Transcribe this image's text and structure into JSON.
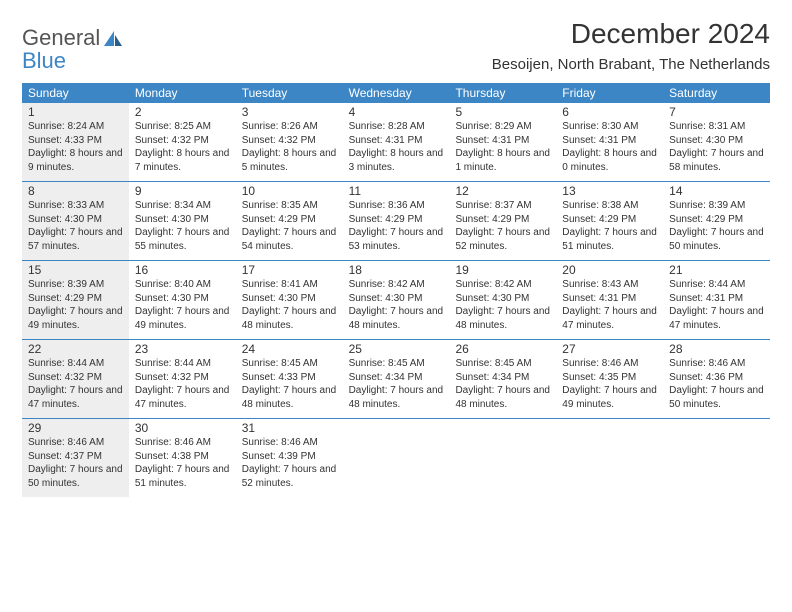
{
  "brand": {
    "line1": "General",
    "line2": "Blue"
  },
  "title": "December 2024",
  "location": "Besoijen, North Brabant, The Netherlands",
  "colors": {
    "header_bg": "#3d86c6",
    "header_text": "#ffffff",
    "text": "#333333",
    "shaded_bg": "#eeeeee",
    "rule": "#3d86c6",
    "page_bg": "#ffffff",
    "logo_general": "#555555",
    "logo_blue": "#3d86c6"
  },
  "fonts": {
    "title_size": 28,
    "location_size": 15,
    "dayheader_size": 12,
    "daynum_size": 12,
    "daytext_size": 10
  },
  "day_names": [
    "Sunday",
    "Monday",
    "Tuesday",
    "Wednesday",
    "Thursday",
    "Friday",
    "Saturday"
  ],
  "weeks": [
    [
      {
        "n": "1",
        "shaded": true,
        "sunrise": "8:24 AM",
        "sunset": "4:33 PM",
        "daylight": "8 hours and 9 minutes."
      },
      {
        "n": "2",
        "sunrise": "8:25 AM",
        "sunset": "4:32 PM",
        "daylight": "8 hours and 7 minutes."
      },
      {
        "n": "3",
        "sunrise": "8:26 AM",
        "sunset": "4:32 PM",
        "daylight": "8 hours and 5 minutes."
      },
      {
        "n": "4",
        "sunrise": "8:28 AM",
        "sunset": "4:31 PM",
        "daylight": "8 hours and 3 minutes."
      },
      {
        "n": "5",
        "sunrise": "8:29 AM",
        "sunset": "4:31 PM",
        "daylight": "8 hours and 1 minute."
      },
      {
        "n": "6",
        "sunrise": "8:30 AM",
        "sunset": "4:31 PM",
        "daylight": "8 hours and 0 minutes."
      },
      {
        "n": "7",
        "sunrise": "8:31 AM",
        "sunset": "4:30 PM",
        "daylight": "7 hours and 58 minutes."
      }
    ],
    [
      {
        "n": "8",
        "shaded": true,
        "sunrise": "8:33 AM",
        "sunset": "4:30 PM",
        "daylight": "7 hours and 57 minutes."
      },
      {
        "n": "9",
        "sunrise": "8:34 AM",
        "sunset": "4:30 PM",
        "daylight": "7 hours and 55 minutes."
      },
      {
        "n": "10",
        "sunrise": "8:35 AM",
        "sunset": "4:29 PM",
        "daylight": "7 hours and 54 minutes."
      },
      {
        "n": "11",
        "sunrise": "8:36 AM",
        "sunset": "4:29 PM",
        "daylight": "7 hours and 53 minutes."
      },
      {
        "n": "12",
        "sunrise": "8:37 AM",
        "sunset": "4:29 PM",
        "daylight": "7 hours and 52 minutes."
      },
      {
        "n": "13",
        "sunrise": "8:38 AM",
        "sunset": "4:29 PM",
        "daylight": "7 hours and 51 minutes."
      },
      {
        "n": "14",
        "sunrise": "8:39 AM",
        "sunset": "4:29 PM",
        "daylight": "7 hours and 50 minutes."
      }
    ],
    [
      {
        "n": "15",
        "shaded": true,
        "sunrise": "8:39 AM",
        "sunset": "4:29 PM",
        "daylight": "7 hours and 49 minutes."
      },
      {
        "n": "16",
        "sunrise": "8:40 AM",
        "sunset": "4:30 PM",
        "daylight": "7 hours and 49 minutes."
      },
      {
        "n": "17",
        "sunrise": "8:41 AM",
        "sunset": "4:30 PM",
        "daylight": "7 hours and 48 minutes."
      },
      {
        "n": "18",
        "sunrise": "8:42 AM",
        "sunset": "4:30 PM",
        "daylight": "7 hours and 48 minutes."
      },
      {
        "n": "19",
        "sunrise": "8:42 AM",
        "sunset": "4:30 PM",
        "daylight": "7 hours and 48 minutes."
      },
      {
        "n": "20",
        "sunrise": "8:43 AM",
        "sunset": "4:31 PM",
        "daylight": "7 hours and 47 minutes."
      },
      {
        "n": "21",
        "sunrise": "8:44 AM",
        "sunset": "4:31 PM",
        "daylight": "7 hours and 47 minutes."
      }
    ],
    [
      {
        "n": "22",
        "shaded": true,
        "sunrise": "8:44 AM",
        "sunset": "4:32 PM",
        "daylight": "7 hours and 47 minutes."
      },
      {
        "n": "23",
        "sunrise": "8:44 AM",
        "sunset": "4:32 PM",
        "daylight": "7 hours and 47 minutes."
      },
      {
        "n": "24",
        "sunrise": "8:45 AM",
        "sunset": "4:33 PM",
        "daylight": "7 hours and 48 minutes."
      },
      {
        "n": "25",
        "sunrise": "8:45 AM",
        "sunset": "4:34 PM",
        "daylight": "7 hours and 48 minutes."
      },
      {
        "n": "26",
        "sunrise": "8:45 AM",
        "sunset": "4:34 PM",
        "daylight": "7 hours and 48 minutes."
      },
      {
        "n": "27",
        "sunrise": "8:46 AM",
        "sunset": "4:35 PM",
        "daylight": "7 hours and 49 minutes."
      },
      {
        "n": "28",
        "sunrise": "8:46 AM",
        "sunset": "4:36 PM",
        "daylight": "7 hours and 50 minutes."
      }
    ],
    [
      {
        "n": "29",
        "shaded": true,
        "sunrise": "8:46 AM",
        "sunset": "4:37 PM",
        "daylight": "7 hours and 50 minutes."
      },
      {
        "n": "30",
        "sunrise": "8:46 AM",
        "sunset": "4:38 PM",
        "daylight": "7 hours and 51 minutes."
      },
      {
        "n": "31",
        "sunrise": "8:46 AM",
        "sunset": "4:39 PM",
        "daylight": "7 hours and 52 minutes."
      },
      {
        "empty": true
      },
      {
        "empty": true
      },
      {
        "empty": true
      },
      {
        "empty": true
      }
    ]
  ],
  "labels": {
    "sunrise": "Sunrise:",
    "sunset": "Sunset:",
    "daylight": "Daylight:"
  }
}
